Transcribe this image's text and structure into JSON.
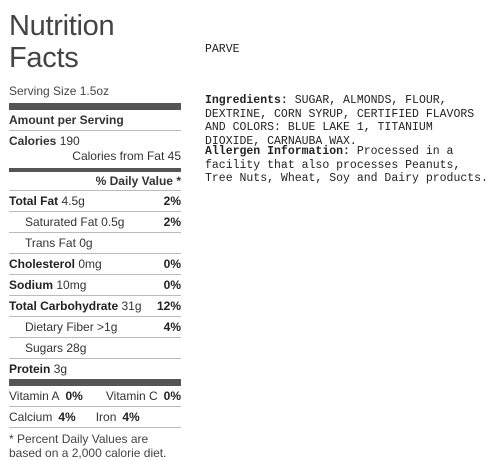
{
  "label": {
    "title": "Nutrition Facts",
    "serving_size": "Serving Size 1.5oz",
    "amount_per_serving": "Amount per Serving",
    "calories_label": "Calories",
    "calories_value": "190",
    "calories_from_fat": "Calories from Fat 45",
    "daily_value_header": "% Daily Value *",
    "nutrients": [
      {
        "name": "Total Fat",
        "amount": "4.5g",
        "pct": "2%"
      },
      {
        "name": "Saturated Fat",
        "amount": "0.5g",
        "pct": "2%"
      },
      {
        "name": "Trans Fat",
        "amount": "0g",
        "pct": ""
      },
      {
        "name": "Cholesterol",
        "amount": "0mg",
        "pct": "0%"
      },
      {
        "name": "Sodium",
        "amount": "10mg",
        "pct": "0%"
      },
      {
        "name": "Total Carbohydrate",
        "amount": "31g",
        "pct": "12%"
      },
      {
        "name": "Dietary Fiber",
        "amount": ">1g",
        "pct": "4%"
      },
      {
        "name": "Sugars",
        "amount": "28g",
        "pct": ""
      },
      {
        "name": "Protein",
        "amount": "3g",
        "pct": ""
      }
    ],
    "vitamins": {
      "vit_a_label": "Vitamin A",
      "vit_a_pct": "0%",
      "vit_c_label": "Vitamin C",
      "vit_c_pct": "0%",
      "calcium_label": "Calcium",
      "calcium_pct": "4%",
      "iron_label": "Iron",
      "iron_pct": "4%"
    },
    "footnote": "* Percent Daily Values are based on a 2,000 calorie diet."
  },
  "info": {
    "parve": "PARVE",
    "ingredients_label": "Ingredients:",
    "ingredients_text": " SUGAR, ALMONDS, FLOUR, DEXTRINE, CORN SYRUP, CERTIFIED FLAVORS AND COLORS: BLUE LAKE 1, TITANIUM DIOXIDE, CARNAUBA WAX.",
    "allergen_label": "Allergen Information:",
    "allergen_text": " Processed in a facility that also processes Peanuts, Tree Nuts, Wheat, Soy and Dairy products."
  }
}
